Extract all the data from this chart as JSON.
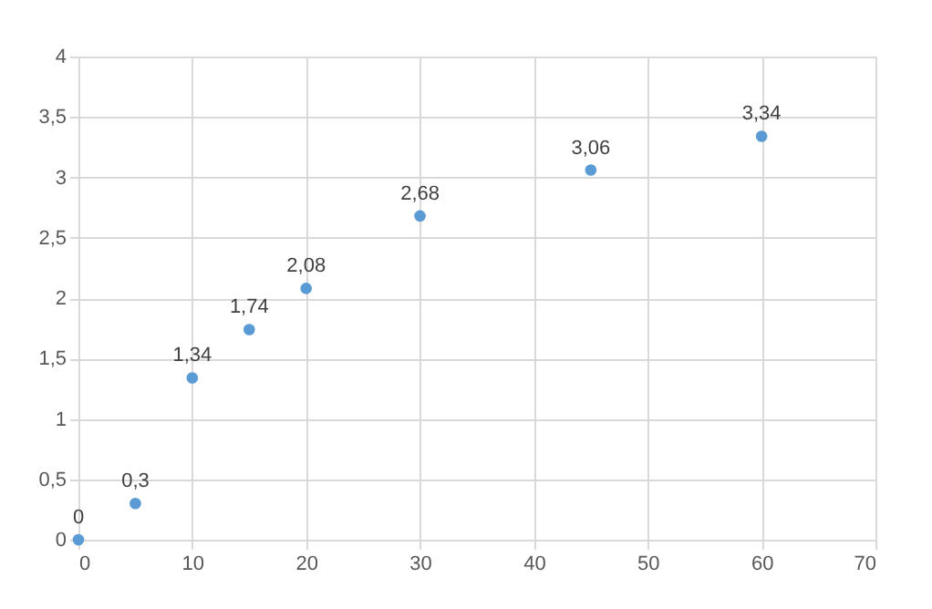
{
  "chart_data": {
    "type": "scatter",
    "x": [
      0,
      5,
      10,
      15,
      20,
      30,
      45,
      60
    ],
    "series": [
      {
        "color": "#5b9bd5",
        "values": [
          0,
          0.3,
          1.34,
          1.74,
          2.08,
          2.68,
          3.06,
          3.34
        ],
        "value_labels": [
          "0",
          "0,3",
          "1,34",
          "1,74",
          "2,08",
          "2,68",
          "3,06",
          "3,34"
        ]
      }
    ],
    "xlim": [
      0,
      70
    ],
    "xticks": [
      0,
      10,
      20,
      30,
      40,
      50,
      60,
      70
    ],
    "ylim": [
      0,
      4
    ],
    "yticks": [
      0,
      {
        "value": 0.5,
        "label": "0,5"
      },
      1,
      {
        "value": 1.5,
        "label": "1,5"
      },
      2,
      {
        "value": 2.5,
        "label": "2,5"
      },
      3,
      {
        "value": 3.5,
        "label": "3,5"
      },
      4
    ],
    "grid": true,
    "marker": "circle"
  }
}
